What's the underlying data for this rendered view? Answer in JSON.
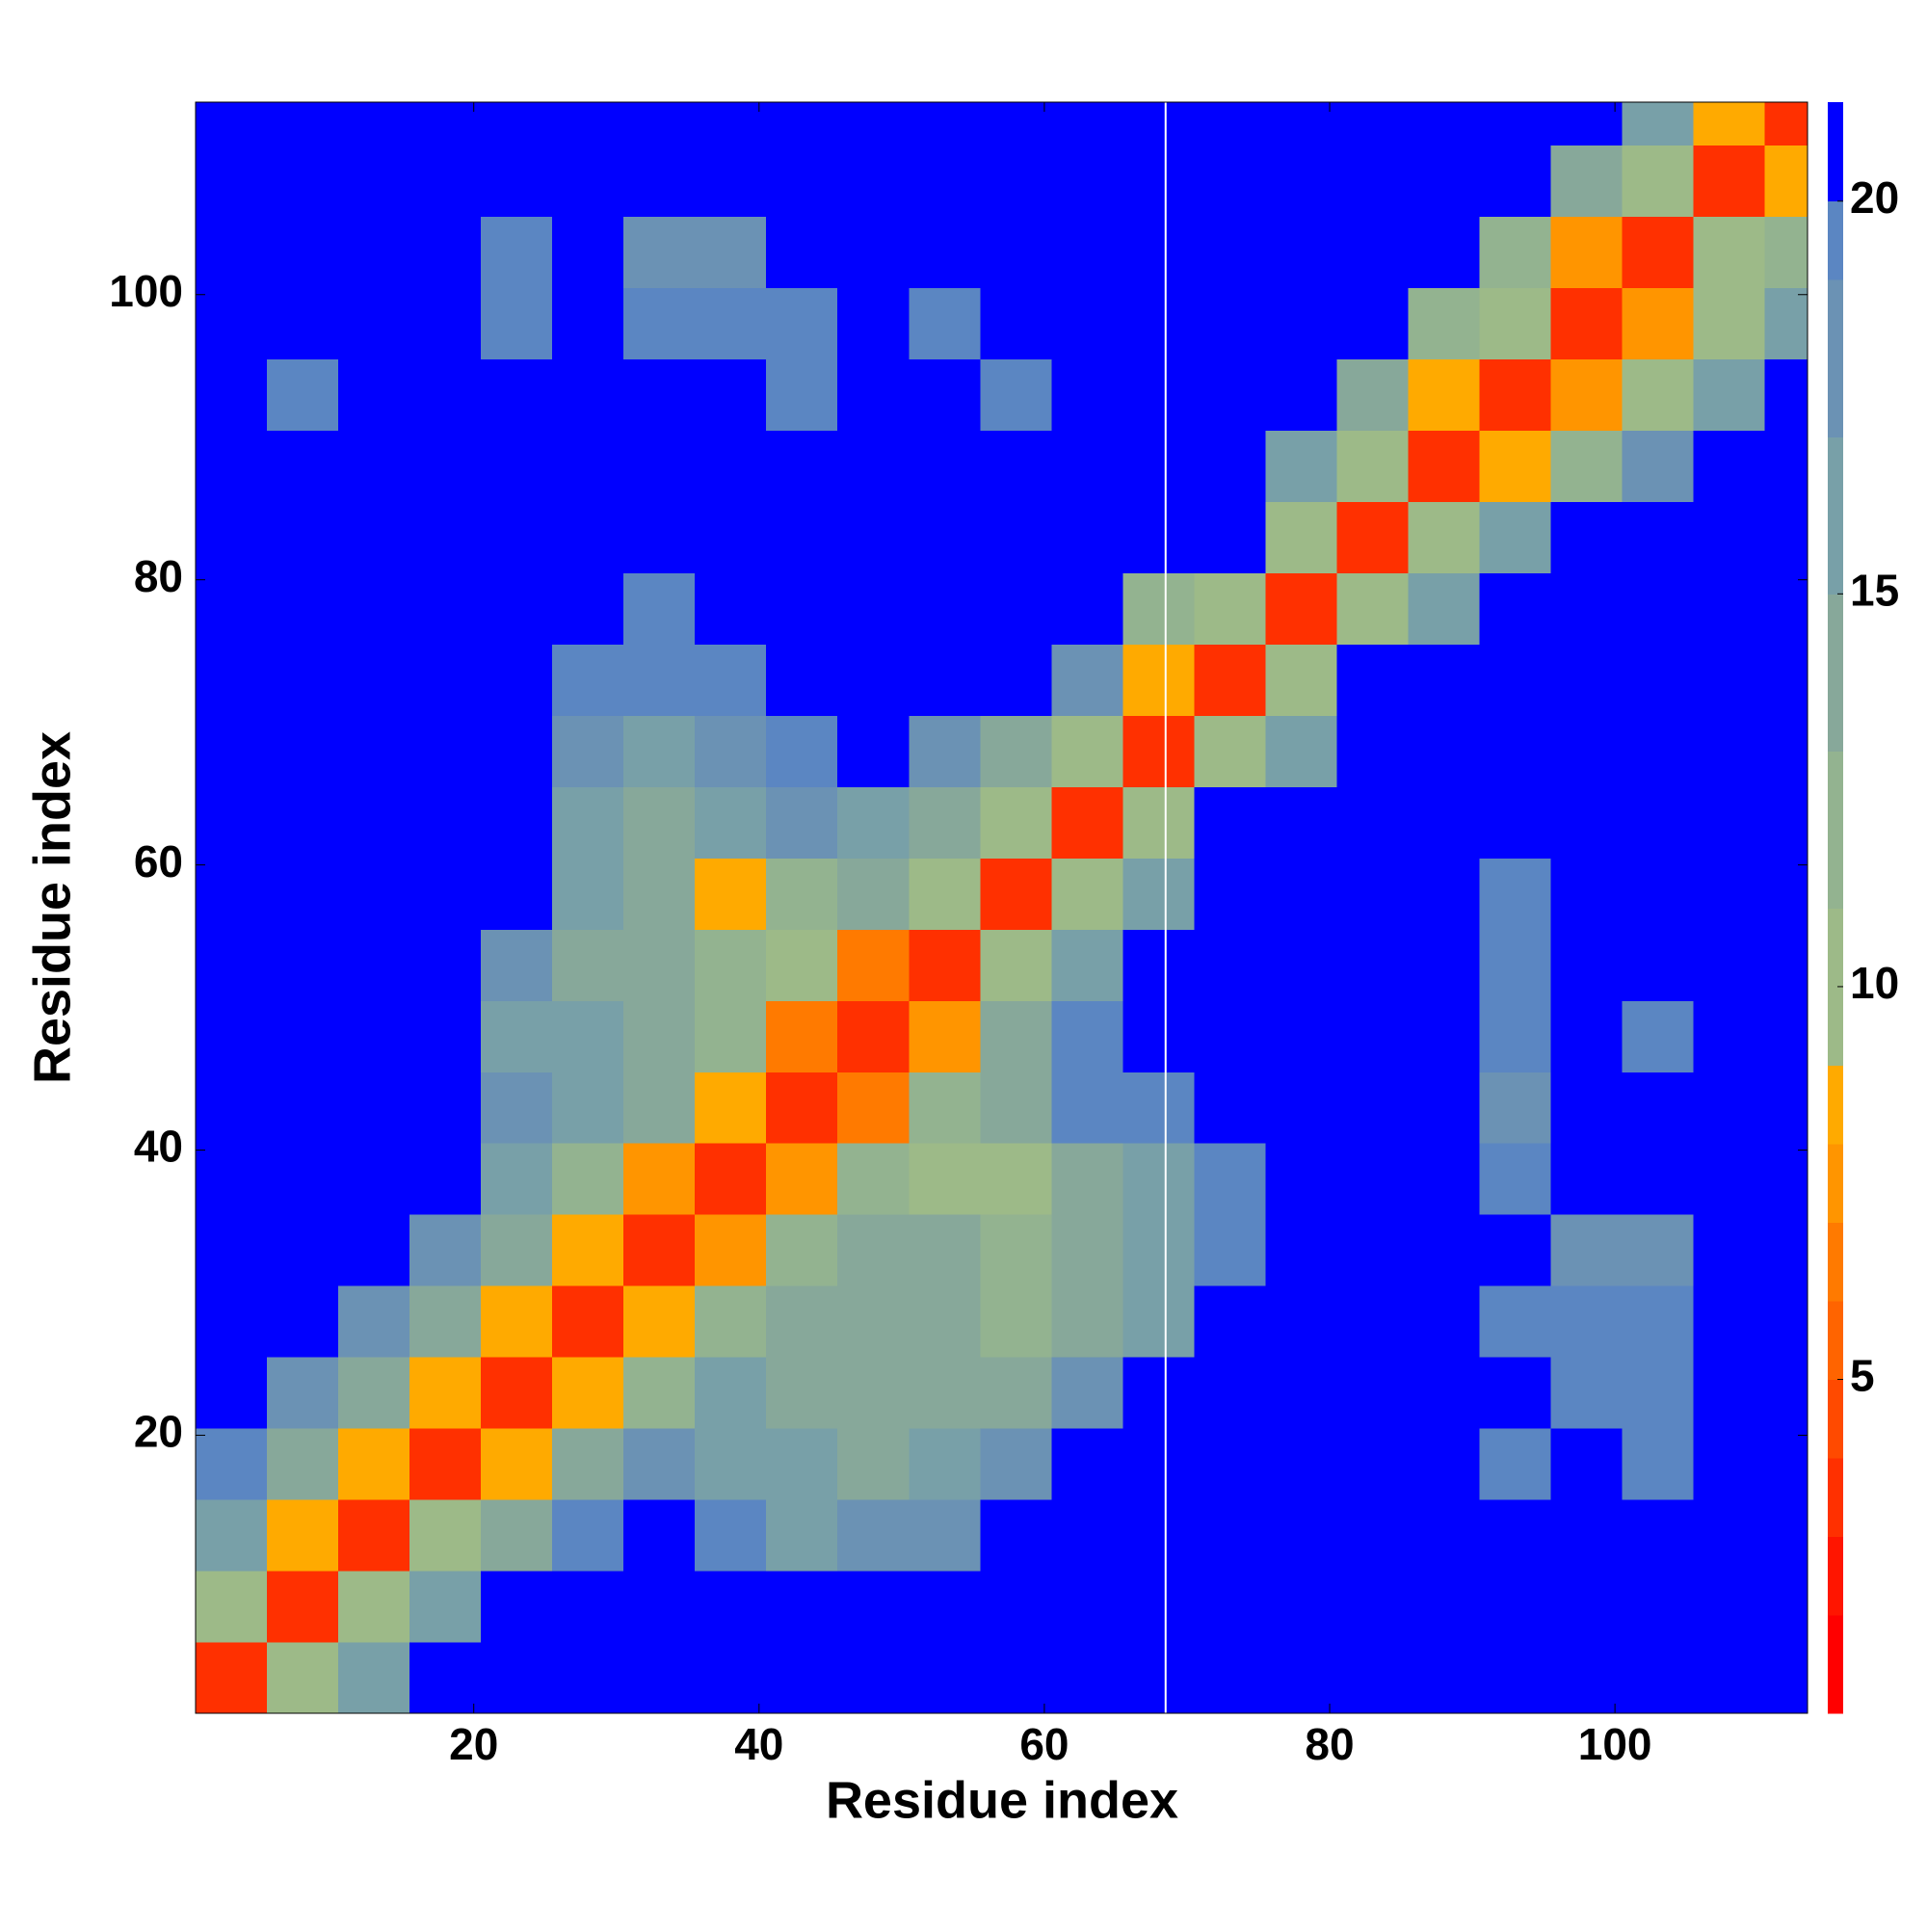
{
  "chart_data": {
    "type": "heatmap",
    "xlabel": "Residue index",
    "ylabel": "Residue index",
    "x": [
      3,
      8,
      13,
      18,
      23,
      28,
      33,
      38,
      43,
      48,
      53,
      58,
      63,
      68,
      73,
      78,
      83,
      88,
      93,
      98,
      103,
      108,
      113
    ],
    "y": [
      3,
      8,
      13,
      18,
      23,
      28,
      33,
      38,
      43,
      48,
      53,
      58,
      63,
      68,
      73,
      78,
      83,
      88,
      93,
      98,
      103,
      108,
      113
    ],
    "cell_size": 5,
    "z": [
      [
        3,
        10,
        16,
        21,
        21,
        21,
        21,
        21,
        21,
        21,
        21,
        21,
        21,
        21,
        21,
        21,
        21,
        21,
        21,
        21,
        21,
        21,
        21
      ],
      [
        10,
        3,
        9,
        15,
        21,
        21,
        21,
        21,
        21,
        21,
        21,
        21,
        21,
        21,
        21,
        21,
        21,
        21,
        21,
        21,
        21,
        21,
        21
      ],
      [
        15,
        8,
        3,
        9,
        14,
        19,
        21,
        19,
        16,
        17,
        17,
        21,
        21,
        21,
        21,
        21,
        21,
        21,
        21,
        21,
        21,
        21,
        21
      ],
      [
        19,
        13,
        8,
        3,
        8,
        13,
        18,
        16,
        15,
        14,
        15,
        17,
        21,
        21,
        21,
        21,
        21,
        21,
        19,
        21,
        19,
        21,
        21
      ],
      [
        21,
        18,
        13,
        8,
        3,
        8,
        12,
        15,
        14,
        14,
        13,
        14,
        17,
        21,
        21,
        21,
        21,
        21,
        21,
        19,
        19,
        21,
        21
      ],
      [
        21,
        21,
        18,
        13,
        8,
        3,
        8,
        12,
        14,
        14,
        13,
        12,
        13,
        15,
        20,
        21,
        21,
        21,
        19,
        19,
        19,
        21,
        21
      ],
      [
        21,
        21,
        21,
        18,
        13,
        8,
        3,
        7,
        12,
        13,
        13,
        12,
        13,
        15,
        19,
        21,
        21,
        21,
        21,
        18,
        18,
        21,
        21
      ],
      [
        21,
        21,
        21,
        21,
        16,
        11,
        7,
        3,
        7,
        11,
        9,
        9,
        13,
        16,
        19,
        21,
        21,
        21,
        19,
        21,
        21,
        21,
        21
      ],
      [
        21,
        21,
        21,
        21,
        17,
        15,
        14,
        8,
        3,
        6,
        12,
        14,
        19,
        19,
        21,
        21,
        21,
        21,
        18,
        21,
        21,
        21,
        21
      ],
      [
        21,
        21,
        21,
        21,
        16,
        15,
        14,
        12,
        6,
        3,
        7,
        14,
        19,
        21,
        21,
        21,
        21,
        21,
        19,
        21,
        19,
        21,
        21
      ],
      [
        21,
        21,
        21,
        21,
        17,
        14,
        13,
        12,
        10,
        6,
        3,
        9,
        15,
        20,
        21,
        21,
        21,
        21,
        19,
        21,
        21,
        21,
        21
      ],
      [
        21,
        21,
        21,
        21,
        20,
        15,
        14,
        8,
        12,
        13,
        9,
        3,
        9,
        16,
        21,
        21,
        21,
        21,
        19,
        21,
        21,
        21,
        21
      ],
      [
        21,
        21,
        21,
        21,
        21,
        16,
        14,
        15,
        17,
        16,
        14,
        9,
        3,
        10,
        21,
        21,
        21,
        21,
        21,
        21,
        21,
        21,
        21
      ],
      [
        21,
        21,
        21,
        21,
        21,
        17,
        16,
        17,
        19,
        21,
        17,
        13,
        10,
        3,
        9,
        16,
        21,
        21,
        21,
        21,
        21,
        21,
        21
      ],
      [
        21,
        21,
        21,
        21,
        21,
        19,
        19,
        19,
        21,
        21,
        21,
        21,
        17,
        8,
        3,
        9,
        21,
        21,
        21,
        21,
        21,
        21,
        21
      ],
      [
        21,
        21,
        21,
        21,
        21,
        21,
        19,
        21,
        21,
        21,
        21,
        21,
        21,
        12,
        9,
        3,
        9,
        16,
        21,
        21,
        21,
        21,
        21
      ],
      [
        21,
        21,
        21,
        21,
        21,
        21,
        21,
        21,
        21,
        21,
        21,
        21,
        21,
        21,
        21,
        9,
        3,
        9,
        15,
        21,
        21,
        21,
        21
      ],
      [
        21,
        21,
        21,
        21,
        21,
        21,
        21,
        21,
        21,
        21,
        21,
        21,
        21,
        21,
        21,
        15,
        9,
        3,
        8,
        12,
        17,
        21,
        21
      ],
      [
        21,
        19,
        21,
        21,
        21,
        21,
        21,
        21,
        19,
        21,
        20,
        19,
        21,
        21,
        21,
        21,
        14,
        8,
        3,
        7,
        9,
        15,
        21
      ],
      [
        21,
        21,
        21,
        21,
        19,
        21,
        19,
        19,
        19,
        21,
        19,
        21,
        21,
        21,
        21,
        21,
        21,
        12,
        9,
        3,
        7,
        10,
        15
      ],
      [
        21,
        21,
        21,
        21,
        19,
        21,
        18,
        17,
        21,
        21,
        21,
        21,
        21,
        21,
        21,
        21,
        21,
        21,
        12,
        7,
        3,
        9,
        12
      ],
      [
        21,
        21,
        21,
        21,
        21,
        21,
        21,
        21,
        21,
        21,
        21,
        21,
        21,
        21,
        21,
        21,
        21,
        21,
        21,
        13,
        9,
        3,
        8
      ],
      [
        21,
        21,
        21,
        21,
        21,
        21,
        21,
        21,
        21,
        21,
        21,
        21,
        21,
        21,
        21,
        21,
        21,
        21,
        21,
        21,
        15,
        8,
        3
      ]
    ],
    "xlim": [
      0.5,
      113.5
    ],
    "ylim": [
      0.5,
      113.5
    ],
    "xticks": [
      20,
      40,
      60,
      80,
      100
    ],
    "yticks": [
      20,
      40,
      60,
      80,
      100
    ],
    "separator_x": 68.5,
    "colorbar": {
      "levels": [
        0.75,
        2,
        3,
        4,
        5,
        6,
        7,
        8,
        9,
        11,
        13,
        15,
        17,
        19,
        20,
        21.26
      ],
      "colors": [
        "#ff0000",
        "#ff1500",
        "#ff3000",
        "#ff4a00",
        "#ff6400",
        "#ff7a00",
        "#ff9500",
        "#ffaa00",
        "#9dba88",
        "#93b390",
        "#87a89a",
        "#78a0a8",
        "#6b92b4",
        "#5b86c2",
        "#0000ff"
      ],
      "ticks": [
        5,
        10,
        15,
        20
      ]
    }
  }
}
